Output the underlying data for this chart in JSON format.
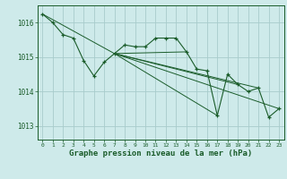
{
  "bg_color": "#ceeaea",
  "grid_color": "#a8cccc",
  "line_color": "#1a5c2a",
  "xlabel": "Graphe pression niveau de la mer (hPa)",
  "xlabel_fontsize": 6.5,
  "yticks": [
    1013,
    1014,
    1015,
    1016
  ],
  "xticks": [
    0,
    1,
    2,
    3,
    4,
    5,
    6,
    7,
    8,
    9,
    10,
    11,
    12,
    13,
    14,
    15,
    16,
    17,
    18,
    19,
    20,
    21,
    22,
    23
  ],
  "ylim": [
    1012.6,
    1016.5
  ],
  "xlim": [
    -0.5,
    23.5
  ],
  "series": [
    [
      0,
      1016.25
    ],
    [
      1,
      1016.0
    ],
    [
      2,
      1015.65
    ],
    [
      3,
      1015.55
    ],
    [
      4,
      1014.9
    ],
    [
      5,
      1014.45
    ],
    [
      6,
      1014.85
    ],
    [
      7,
      1015.1
    ],
    [
      8,
      1015.35
    ],
    [
      9,
      1015.3
    ],
    [
      10,
      1015.3
    ],
    [
      11,
      1015.55
    ],
    [
      12,
      1015.55
    ],
    [
      13,
      1015.55
    ],
    [
      14,
      1015.15
    ],
    [
      15,
      1014.65
    ],
    [
      16,
      1014.6
    ],
    [
      17,
      1013.3
    ],
    [
      18,
      1014.5
    ],
    [
      19,
      1014.2
    ],
    [
      20,
      1014.0
    ],
    [
      21,
      1014.1
    ],
    [
      22,
      1013.25
    ],
    [
      23,
      1013.5
    ]
  ],
  "extra_lines": [
    [
      [
        0,
        1016.25
      ],
      [
        7,
        1015.1
      ]
    ],
    [
      [
        7,
        1015.1
      ],
      [
        14,
        1015.15
      ]
    ],
    [
      [
        7,
        1015.1
      ],
      [
        17,
        1013.3
      ]
    ],
    [
      [
        7,
        1015.1
      ],
      [
        19,
        1014.2
      ]
    ],
    [
      [
        7,
        1015.1
      ],
      [
        21,
        1014.1
      ]
    ],
    [
      [
        7,
        1015.1
      ],
      [
        23,
        1013.5
      ]
    ]
  ]
}
